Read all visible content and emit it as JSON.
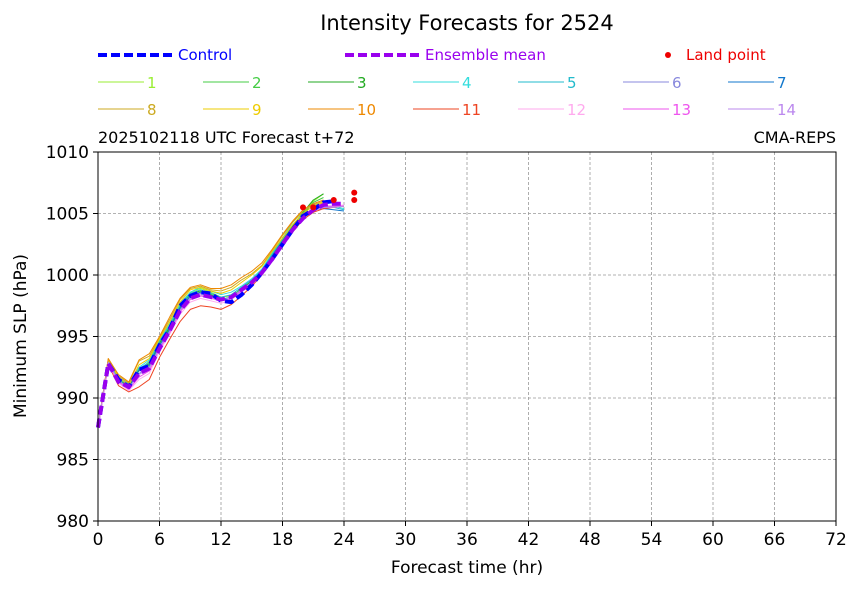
{
  "chart_data": {
    "type": "line",
    "title": "Intensity Forecasts for 2524",
    "subtitle_left": "2025102118 UTC Forecast t+72",
    "subtitle_right": "CMA-REPS",
    "xlabel": "Forecast time (hr)",
    "ylabel": "Minimum SLP (hPa)",
    "xlim": [
      0,
      72
    ],
    "ylim": [
      980,
      1010
    ],
    "xticks": [
      "0",
      "6",
      "12",
      "18",
      "24",
      "30",
      "36",
      "42",
      "48",
      "54",
      "60",
      "66",
      "72"
    ],
    "yticks": [
      "980",
      "985",
      "990",
      "995",
      "1000",
      "1005",
      "1010"
    ],
    "grid": true,
    "legend": [
      {
        "label": "Control",
        "color": "#0000ff",
        "style": "dashed-thick"
      },
      {
        "label": "Ensemble mean",
        "color": "#9900ee",
        "style": "dashed-thick"
      },
      {
        "label": "Land point",
        "color": "#ee0000",
        "style": "dot"
      },
      {
        "label": "1",
        "color": "#99ee33"
      },
      {
        "label": "2",
        "color": "#44cc44"
      },
      {
        "label": "3",
        "color": "#22aa22"
      },
      {
        "label": "4",
        "color": "#33dddd"
      },
      {
        "label": "5",
        "color": "#22bbcc"
      },
      {
        "label": "6",
        "color": "#8888dd"
      },
      {
        "label": "7",
        "color": "#1177cc"
      },
      {
        "label": "8",
        "color": "#ccaa22"
      },
      {
        "label": "9",
        "color": "#eecc00"
      },
      {
        "label": "10",
        "color": "#ee8800"
      },
      {
        "label": "11",
        "color": "#ee4422"
      },
      {
        "label": "12",
        "color": "#ffaaee"
      },
      {
        "label": "13",
        "color": "#ee55ee"
      },
      {
        "label": "14",
        "color": "#bb88ee"
      }
    ],
    "x": [
      0,
      1,
      2,
      3,
      4,
      5,
      6,
      7,
      8,
      9,
      10,
      11,
      12,
      13,
      14,
      15,
      16,
      17,
      18,
      19,
      20,
      21,
      22,
      23,
      24
    ],
    "series": [
      {
        "name": "1",
        "color": "#99ee33",
        "values": [
          987.6,
          993.0,
          991.6,
          991.2,
          992.2,
          993.0,
          994.6,
          996.0,
          997.6,
          998.6,
          998.9,
          998.6,
          998.2,
          998.3,
          998.8,
          999.4,
          1000.2,
          1001.5,
          1002.6,
          1003.8,
          1005.0,
          1006.0,
          1006.6,
          null,
          null
        ]
      },
      {
        "name": "2",
        "color": "#44cc44",
        "values": [
          987.6,
          993.0,
          991.4,
          990.9,
          992.4,
          992.6,
          994.4,
          995.7,
          997.5,
          998.4,
          998.6,
          998.5,
          998.1,
          998.1,
          998.7,
          999.3,
          1000.2,
          1001.4,
          1002.6,
          1003.8,
          1004.9,
          1005.9,
          1006.3,
          null,
          null
        ]
      },
      {
        "name": "3",
        "color": "#22aa22",
        "values": [
          987.6,
          992.9,
          991.5,
          991.0,
          992.3,
          992.8,
          994.5,
          995.8,
          997.4,
          998.5,
          998.7,
          998.4,
          998.0,
          998.2,
          998.9,
          999.5,
          1000.3,
          1001.6,
          1002.8,
          1004.0,
          1005.1,
          1006.1,
          1006.6,
          null,
          null
        ]
      },
      {
        "name": "4",
        "color": "#33dddd",
        "values": [
          987.6,
          993.1,
          991.7,
          991.1,
          992.5,
          993.1,
          994.7,
          996.1,
          997.7,
          998.6,
          999.0,
          998.7,
          998.4,
          998.6,
          999.1,
          999.7,
          1000.5,
          1001.8,
          1003.0,
          1004.3,
          1005.2,
          1005.8,
          1005.6,
          1005.6,
          1005.4
        ]
      },
      {
        "name": "5",
        "color": "#22bbcc",
        "values": [
          987.6,
          993.0,
          991.5,
          991.1,
          992.4,
          992.9,
          994.6,
          995.9,
          997.5,
          998.5,
          998.8,
          998.5,
          998.2,
          998.4,
          999.0,
          999.6,
          1000.4,
          1001.7,
          1002.9,
          1004.1,
          1005.0,
          1005.6,
          1005.5,
          1005.5,
          1005.3
        ]
      },
      {
        "name": "6",
        "color": "#8888dd",
        "values": [
          987.6,
          992.8,
          991.3,
          990.8,
          992.0,
          992.5,
          994.2,
          995.5,
          997.2,
          998.2,
          998.5,
          998.2,
          997.9,
          998.1,
          998.7,
          999.3,
          1000.1,
          1001.4,
          1002.5,
          1003.6,
          1004.6,
          1005.2,
          1005.6,
          1005.5,
          1005.6
        ]
      },
      {
        "name": "7",
        "color": "#1177cc",
        "values": [
          987.6,
          992.9,
          991.4,
          990.9,
          992.2,
          992.7,
          994.3,
          995.6,
          997.3,
          998.3,
          998.6,
          998.3,
          998.0,
          998.2,
          998.8,
          999.4,
          1000.2,
          1001.5,
          1002.7,
          1003.8,
          1004.8,
          1005.3,
          1005.4,
          1005.3,
          1005.2
        ]
      },
      {
        "name": "8",
        "color": "#ccaa22",
        "values": [
          987.6,
          993.2,
          991.8,
          991.2,
          993.0,
          993.4,
          994.9,
          996.4,
          998.0,
          998.9,
          999.1,
          998.8,
          998.7,
          999.0,
          999.6,
          1000.1,
          1000.8,
          1002.0,
          1003.2,
          1004.3,
          1005.2,
          1005.7,
          1006.0,
          null,
          null
        ]
      },
      {
        "name": "9",
        "color": "#eecc00",
        "values": [
          987.6,
          993.1,
          991.7,
          991.0,
          992.7,
          993.2,
          994.8,
          996.2,
          997.8,
          998.8,
          999.0,
          998.7,
          998.5,
          998.8,
          999.4,
          1000.0,
          1000.7,
          1001.9,
          1003.0,
          1004.1,
          1005.0,
          1005.6,
          1005.9,
          null,
          null
        ]
      },
      {
        "name": "10",
        "color": "#ee8800",
        "values": [
          987.6,
          993.2,
          991.9,
          991.3,
          993.1,
          993.6,
          995.0,
          996.6,
          998.1,
          999.0,
          999.2,
          998.9,
          998.9,
          999.2,
          999.8,
          1000.3,
          1001.0,
          1002.1,
          1003.3,
          1004.4,
          1005.3,
          1005.8,
          1006.1,
          null,
          null
        ]
      },
      {
        "name": "11",
        "color": "#ee4422",
        "values": [
          987.6,
          992.7,
          991.0,
          990.5,
          990.9,
          991.5,
          993.3,
          994.8,
          996.2,
          997.2,
          997.5,
          997.4,
          997.2,
          997.6,
          998.3,
          999.1,
          1000.0,
          1001.2,
          1002.4,
          1003.5,
          1004.5,
          1005.1,
          1005.4,
          1005.5,
          1005.6
        ]
      },
      {
        "name": "12",
        "color": "#ffaaee",
        "values": [
          987.6,
          992.8,
          991.2,
          990.6,
          991.5,
          992.0,
          993.8,
          995.2,
          996.8,
          997.8,
          998.1,
          997.9,
          997.7,
          998.0,
          998.6,
          999.2,
          1000.0,
          1001.3,
          1002.5,
          1003.6,
          1004.6,
          1005.2,
          1005.6,
          1005.6,
          1005.7
        ]
      },
      {
        "name": "13",
        "color": "#ee55ee",
        "values": [
          987.6,
          992.8,
          991.3,
          990.7,
          991.7,
          992.2,
          994.0,
          995.3,
          997.0,
          998.0,
          998.3,
          998.1,
          997.9,
          998.1,
          998.7,
          999.3,
          1000.1,
          1001.4,
          1002.6,
          1003.7,
          1004.7,
          1005.3,
          1005.6,
          1005.6,
          1005.6
        ]
      },
      {
        "name": "14",
        "color": "#bb88ee",
        "values": [
          987.6,
          992.9,
          991.4,
          990.8,
          991.9,
          992.4,
          994.1,
          995.4,
          997.1,
          998.1,
          998.4,
          998.2,
          997.9,
          998.2,
          998.8,
          999.4,
          1000.2,
          1001.5,
          1002.6,
          1003.7,
          1004.7,
          1005.2,
          1005.5,
          1005.5,
          1005.6
        ]
      },
      {
        "name": "Control",
        "color": "#0000ff",
        "dashed": true,
        "width": 4,
        "values": [
          987.6,
          992.8,
          991.5,
          990.9,
          992.3,
          992.6,
          994.3,
          995.6,
          997.5,
          998.3,
          998.6,
          998.5,
          997.9,
          997.8,
          998.4,
          999.2,
          1000.2,
          1001.3,
          1002.5,
          1003.7,
          1004.8,
          1005.3,
          1005.9,
          1006.0,
          null
        ]
      },
      {
        "name": "Ensemble mean",
        "color": "#9900ee",
        "dashed": true,
        "width": 4,
        "values": [
          987.6,
          992.8,
          991.3,
          990.9,
          992.0,
          992.4,
          994.0,
          995.5,
          997.1,
          998.1,
          998.4,
          998.2,
          998.0,
          998.2,
          998.8,
          999.4,
          1000.2,
          1001.3,
          1002.5,
          1003.7,
          1004.6,
          1005.3,
          1005.7,
          1005.8,
          1005.8
        ]
      }
    ],
    "land_points": [
      {
        "x": 20,
        "y": 1005.5
      },
      {
        "x": 21,
        "y": 1005.5
      },
      {
        "x": 23,
        "y": 1006.1
      },
      {
        "x": 25,
        "y": 1006.7
      },
      {
        "x": 25,
        "y": 1006.1
      }
    ]
  }
}
